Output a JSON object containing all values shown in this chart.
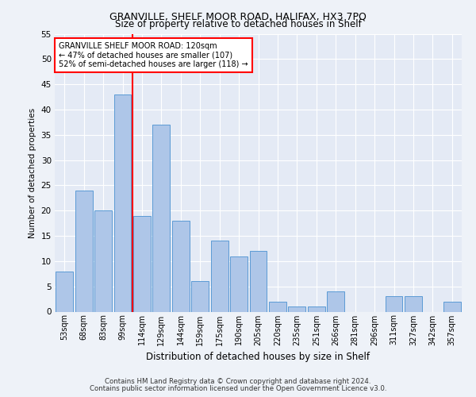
{
  "title1": "GRANVILLE, SHELF MOOR ROAD, HALIFAX, HX3 7PQ",
  "title2": "Size of property relative to detached houses in Shelf",
  "xlabel": "Distribution of detached houses by size in Shelf",
  "ylabel": "Number of detached properties",
  "bins": [
    "53sqm",
    "68sqm",
    "83sqm",
    "99sqm",
    "114sqm",
    "129sqm",
    "144sqm",
    "159sqm",
    "175sqm",
    "190sqm",
    "205sqm",
    "220sqm",
    "235sqm",
    "251sqm",
    "266sqm",
    "281sqm",
    "296sqm",
    "311sqm",
    "327sqm",
    "342sqm",
    "357sqm"
  ],
  "values": [
    8,
    24,
    20,
    43,
    19,
    37,
    18,
    6,
    14,
    11,
    12,
    2,
    1,
    1,
    4,
    0,
    0,
    3,
    3,
    0,
    2
  ],
  "bar_color": "#aec6e8",
  "bar_edge_color": "#5b9bd5",
  "vline_x_index": 3.5,
  "vline_color": "red",
  "annotation_text": "GRANVILLE SHELF MOOR ROAD: 120sqm\n← 47% of detached houses are smaller (107)\n52% of semi-detached houses are larger (118) →",
  "annotation_box_color": "white",
  "annotation_box_edge": "red",
  "ylim": [
    0,
    55
  ],
  "yticks": [
    0,
    5,
    10,
    15,
    20,
    25,
    30,
    35,
    40,
    45,
    50,
    55
  ],
  "footer1": "Contains HM Land Registry data © Crown copyright and database right 2024.",
  "footer2": "Contains public sector information licensed under the Open Government Licence v3.0.",
  "bg_color": "#eef2f8",
  "plot_bg_color": "#e4eaf5"
}
